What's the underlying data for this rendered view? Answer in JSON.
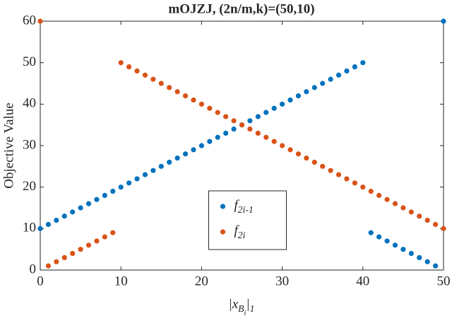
{
  "chart_data": {
    "type": "scatter",
    "title": "mOJZJ, (2n/m,k)=(50,10)",
    "x_label": "|xBi|1",
    "y_label": "Objective Value",
    "x": [
      0,
      1,
      2,
      3,
      4,
      5,
      6,
      7,
      8,
      9,
      10,
      11,
      12,
      13,
      14,
      15,
      16,
      17,
      18,
      19,
      20,
      21,
      22,
      23,
      24,
      25,
      26,
      27,
      28,
      29,
      30,
      31,
      32,
      33,
      34,
      35,
      36,
      37,
      38,
      39,
      40,
      41,
      42,
      43,
      44,
      45,
      46,
      47,
      48,
      49,
      50
    ],
    "series": [
      {
        "name": "f2i-1",
        "color": "#0072bd",
        "values": [
          10,
          11,
          12,
          13,
          14,
          15,
          16,
          17,
          18,
          19,
          20,
          21,
          22,
          23,
          24,
          25,
          26,
          27,
          28,
          29,
          30,
          31,
          32,
          33,
          34,
          35,
          36,
          37,
          38,
          39,
          40,
          41,
          42,
          43,
          44,
          45,
          46,
          47,
          48,
          49,
          50,
          9,
          8,
          7,
          6,
          5,
          4,
          3,
          2,
          1,
          60
        ]
      },
      {
        "name": "f2i",
        "color": "#d95319",
        "values": [
          60,
          1,
          2,
          3,
          4,
          5,
          6,
          7,
          8,
          9,
          50,
          49,
          48,
          47,
          46,
          45,
          44,
          43,
          42,
          41,
          40,
          39,
          38,
          37,
          36,
          35,
          34,
          33,
          32,
          31,
          30,
          29,
          28,
          27,
          26,
          25,
          24,
          23,
          22,
          21,
          20,
          19,
          18,
          17,
          16,
          15,
          14,
          13,
          12,
          11,
          10
        ]
      }
    ],
    "xlim": [
      0,
      50
    ],
    "xticks": [
      0,
      10,
      20,
      30,
      40,
      50
    ],
    "ylim": [
      0,
      60
    ],
    "yticks": [
      0,
      10,
      20,
      30,
      40,
      50,
      60
    ],
    "grid": false,
    "legend": "south"
  }
}
